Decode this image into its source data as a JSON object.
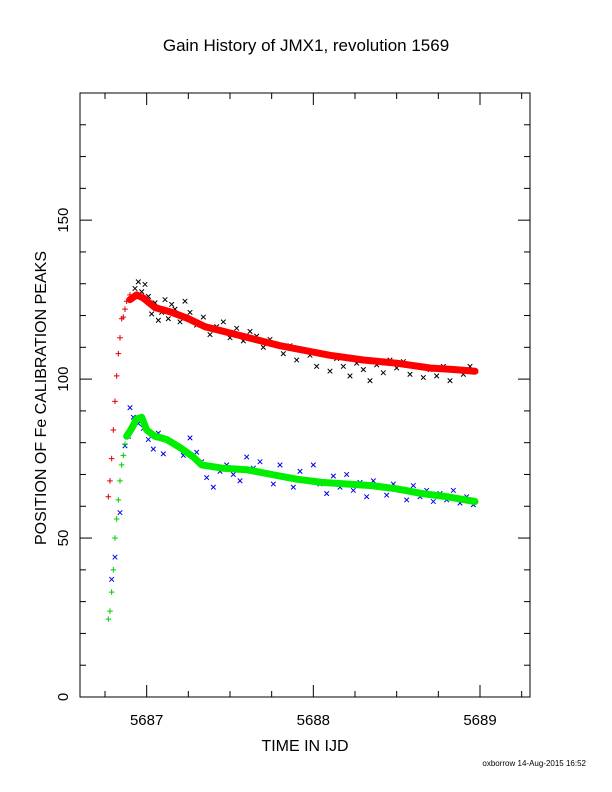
{
  "chart_data": {
    "type": "scatter",
    "title": "Gain History of JMX1, revolution 1569",
    "xlabel": "TIME IN IJD",
    "ylabel": "POSITION OF Fe CALIBRATION PEAKS",
    "xlim": [
      5686.6,
      5689.3
    ],
    "ylim": [
      0,
      190
    ],
    "xticks": [
      5687,
      5688,
      5689
    ],
    "yticks": [
      0,
      50,
      100,
      150
    ],
    "grid": false,
    "series": [
      {
        "color": "#000000",
        "marker": "x",
        "points": [
          [
            5686.93,
            128.5
          ],
          [
            5686.95,
            130.6
          ],
          [
            5686.97,
            127.5
          ],
          [
            5686.99,
            129.8
          ],
          [
            5687.01,
            126.0
          ],
          [
            5687.03,
            120.5
          ],
          [
            5687.05,
            124.0
          ],
          [
            5687.07,
            118.5
          ],
          [
            5687.09,
            121.0
          ],
          [
            5687.11,
            125.0
          ],
          [
            5687.13,
            119.0
          ],
          [
            5687.15,
            123.5
          ],
          [
            5687.17,
            122.0
          ],
          [
            5687.2,
            118.0
          ],
          [
            5687.23,
            124.5
          ],
          [
            5687.26,
            121.0
          ],
          [
            5687.3,
            117.0
          ],
          [
            5687.34,
            119.5
          ],
          [
            5687.38,
            114.0
          ],
          [
            5687.42,
            116.5
          ],
          [
            5687.46,
            118.0
          ],
          [
            5687.5,
            113.0
          ],
          [
            5687.54,
            116.0
          ],
          [
            5687.58,
            112.0
          ],
          [
            5687.62,
            115.0
          ],
          [
            5687.66,
            113.5
          ],
          [
            5687.7,
            110.0
          ],
          [
            5687.74,
            112.5
          ],
          [
            5687.78,
            111.0
          ],
          [
            5687.82,
            108.0
          ],
          [
            5687.86,
            110.5
          ],
          [
            5687.9,
            106.0
          ],
          [
            5687.94,
            109.0
          ],
          [
            5687.98,
            107.5
          ],
          [
            5688.02,
            104.0
          ],
          [
            5688.06,
            108.0
          ],
          [
            5688.1,
            102.5
          ],
          [
            5688.14,
            106.5
          ],
          [
            5688.18,
            104.0
          ],
          [
            5688.22,
            101.0
          ],
          [
            5688.26,
            105.0
          ],
          [
            5688.3,
            103.0
          ],
          [
            5688.34,
            99.5
          ],
          [
            5688.38,
            104.5
          ],
          [
            5688.42,
            102.0
          ],
          [
            5688.46,
            106.0
          ],
          [
            5688.5,
            103.5
          ],
          [
            5688.54,
            105.5
          ],
          [
            5688.58,
            101.5
          ],
          [
            5688.62,
            104.0
          ],
          [
            5688.66,
            100.5
          ],
          [
            5688.7,
            103.0
          ],
          [
            5688.74,
            101.0
          ],
          [
            5688.78,
            104.0
          ],
          [
            5688.82,
            99.5
          ],
          [
            5688.86,
            103.0
          ],
          [
            5688.9,
            101.5
          ],
          [
            5688.94,
            104.0
          ],
          [
            5688.97,
            102.5
          ]
        ]
      },
      {
        "color": "#e00000",
        "marker": "+",
        "points": [
          [
            5686.77,
            63.0
          ],
          [
            5686.78,
            68.0
          ],
          [
            5686.79,
            75.0
          ],
          [
            5686.8,
            84.0
          ],
          [
            5686.81,
            93.0
          ],
          [
            5686.82,
            101.0
          ],
          [
            5686.83,
            108.0
          ],
          [
            5686.84,
            113.0
          ],
          [
            5686.85,
            119.0
          ],
          [
            5686.86,
            119.5
          ],
          [
            5686.87,
            122.0
          ],
          [
            5686.88,
            124.5
          ],
          [
            5686.9,
            126.5
          ]
        ]
      },
      {
        "color": "#ff0000",
        "marker": "line",
        "points": [
          [
            5686.9,
            125.0
          ],
          [
            5686.94,
            126.5
          ],
          [
            5686.98,
            125.5
          ],
          [
            5687.05,
            122.5
          ],
          [
            5687.15,
            121.0
          ],
          [
            5687.25,
            119.0
          ],
          [
            5687.35,
            116.5
          ],
          [
            5687.5,
            114.5
          ],
          [
            5687.65,
            112.5
          ],
          [
            5687.8,
            110.5
          ],
          [
            5687.95,
            109.0
          ],
          [
            5688.1,
            107.5
          ],
          [
            5688.3,
            106.0
          ],
          [
            5688.5,
            105.0
          ],
          [
            5688.7,
            103.5
          ],
          [
            5688.85,
            103.0
          ],
          [
            5688.97,
            102.5
          ]
        ]
      },
      {
        "color": "#0000ee",
        "marker": "x",
        "points": [
          [
            5686.79,
            37.0
          ],
          [
            5686.81,
            44.0
          ],
          [
            5686.84,
            58.0
          ],
          [
            5686.87,
            79.0
          ],
          [
            5686.89,
            82.0
          ],
          [
            5686.9,
            91.0
          ],
          [
            5686.92,
            88.0
          ],
          [
            5686.95,
            86.0
          ],
          [
            5686.98,
            84.5
          ],
          [
            5687.01,
            81.0
          ],
          [
            5687.04,
            78.0
          ],
          [
            5687.07,
            83.0
          ],
          [
            5687.1,
            76.5
          ],
          [
            5687.14,
            80.5
          ],
          [
            5687.18,
            79.0
          ],
          [
            5687.22,
            76.0
          ],
          [
            5687.26,
            81.5
          ],
          [
            5687.3,
            77.0
          ],
          [
            5687.33,
            74.0
          ],
          [
            5687.36,
            69.0
          ],
          [
            5687.4,
            66.0
          ],
          [
            5687.44,
            71.0
          ],
          [
            5687.48,
            73.0
          ],
          [
            5687.52,
            70.0
          ],
          [
            5687.56,
            68.0
          ],
          [
            5687.6,
            75.5
          ],
          [
            5687.64,
            72.0
          ],
          [
            5687.68,
            74.0
          ],
          [
            5687.72,
            70.5
          ],
          [
            5687.76,
            67.0
          ],
          [
            5687.8,
            73.0
          ],
          [
            5687.84,
            69.0
          ],
          [
            5687.88,
            66.0
          ],
          [
            5687.92,
            71.0
          ],
          [
            5687.96,
            68.0
          ],
          [
            5688.0,
            73.0
          ],
          [
            5688.04,
            67.0
          ],
          [
            5688.08,
            64.0
          ],
          [
            5688.12,
            69.5
          ],
          [
            5688.16,
            66.0
          ],
          [
            5688.2,
            70.0
          ],
          [
            5688.24,
            65.0
          ],
          [
            5688.28,
            67.5
          ],
          [
            5688.32,
            63.0
          ],
          [
            5688.36,
            68.0
          ],
          [
            5688.4,
            66.0
          ],
          [
            5688.44,
            63.5
          ],
          [
            5688.48,
            67.0
          ],
          [
            5688.52,
            65.0
          ],
          [
            5688.56,
            62.0
          ],
          [
            5688.6,
            66.5
          ],
          [
            5688.64,
            63.0
          ],
          [
            5688.68,
            65.0
          ],
          [
            5688.72,
            61.5
          ],
          [
            5688.76,
            64.0
          ],
          [
            5688.8,
            62.0
          ],
          [
            5688.84,
            65.0
          ],
          [
            5688.88,
            61.0
          ],
          [
            5688.92,
            63.0
          ],
          [
            5688.96,
            60.5
          ]
        ]
      },
      {
        "color": "#00cc00",
        "marker": "+",
        "points": [
          [
            5686.77,
            24.5
          ],
          [
            5686.78,
            27.0
          ],
          [
            5686.79,
            33.0
          ],
          [
            5686.8,
            40.0
          ],
          [
            5686.81,
            50.0
          ],
          [
            5686.82,
            56.0
          ],
          [
            5686.83,
            62.0
          ],
          [
            5686.84,
            68.0
          ],
          [
            5686.85,
            73.0
          ],
          [
            5686.86,
            76.0
          ],
          [
            5686.87,
            79.5
          ],
          [
            5686.88,
            82.0
          ]
        ]
      },
      {
        "color": "#00ee00",
        "marker": "line",
        "points": [
          [
            5686.88,
            82.0
          ],
          [
            5686.91,
            84.5
          ],
          [
            5686.94,
            87.5
          ],
          [
            5686.97,
            88.0
          ],
          [
            5687.0,
            84.0
          ],
          [
            5687.05,
            82.0
          ],
          [
            5687.12,
            81.0
          ],
          [
            5687.2,
            78.5
          ],
          [
            5687.28,
            75.5
          ],
          [
            5687.33,
            73.0
          ],
          [
            5687.45,
            72.0
          ],
          [
            5687.6,
            71.5
          ],
          [
            5687.75,
            70.0
          ],
          [
            5687.9,
            68.5
          ],
          [
            5688.05,
            67.5
          ],
          [
            5688.2,
            67.0
          ],
          [
            5688.35,
            66.5
          ],
          [
            5688.5,
            65.5
          ],
          [
            5688.65,
            64.0
          ],
          [
            5688.8,
            63.0
          ],
          [
            5688.97,
            61.5
          ]
        ]
      }
    ]
  },
  "footer": "oxborrow 14-Aug-2015 16:52"
}
